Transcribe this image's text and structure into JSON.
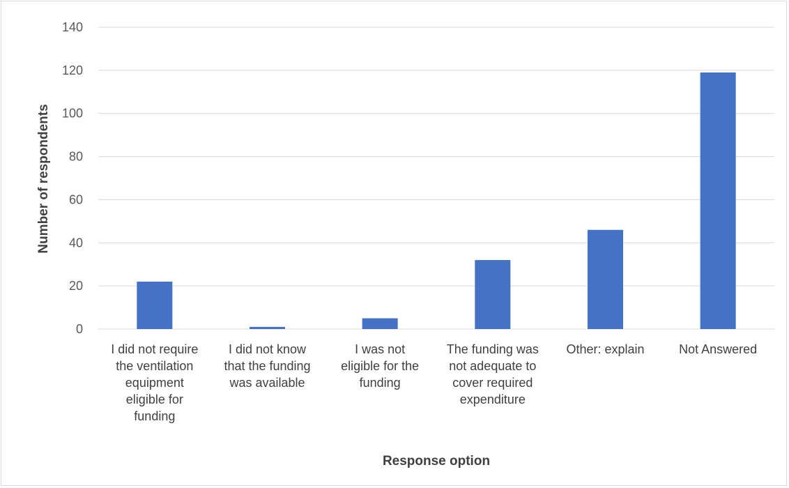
{
  "chart_data": {
    "type": "bar",
    "title": "",
    "xlabel": "Response option",
    "ylabel": "Number of respondents",
    "categories": [
      "I did not require the ventilation equipment eligible for funding",
      "I did not know that the funding was available",
      "I was not eligible for the funding",
      "The funding was not adequate to cover required expenditure",
      "Other: explain",
      "Not Answered"
    ],
    "category_lines": [
      [
        "I did not require",
        "the ventilation",
        "equipment",
        "eligible for",
        "funding"
      ],
      [
        "I did not know",
        "that the funding",
        "was available"
      ],
      [
        "I was not",
        "eligible for the",
        "funding"
      ],
      [
        "The funding was",
        "not adequate to",
        "cover required",
        "expenditure"
      ],
      [
        "Other: explain"
      ],
      [
        "Not Answered"
      ]
    ],
    "values": [
      22,
      1,
      5,
      32,
      46,
      119
    ],
    "ylim": [
      0,
      140
    ],
    "yticks": [
      0,
      20,
      40,
      60,
      80,
      100,
      120,
      140
    ],
    "grid": true,
    "legend": "none",
    "bar_color": "#4472c4",
    "grid_color": "#d9d9d9"
  }
}
